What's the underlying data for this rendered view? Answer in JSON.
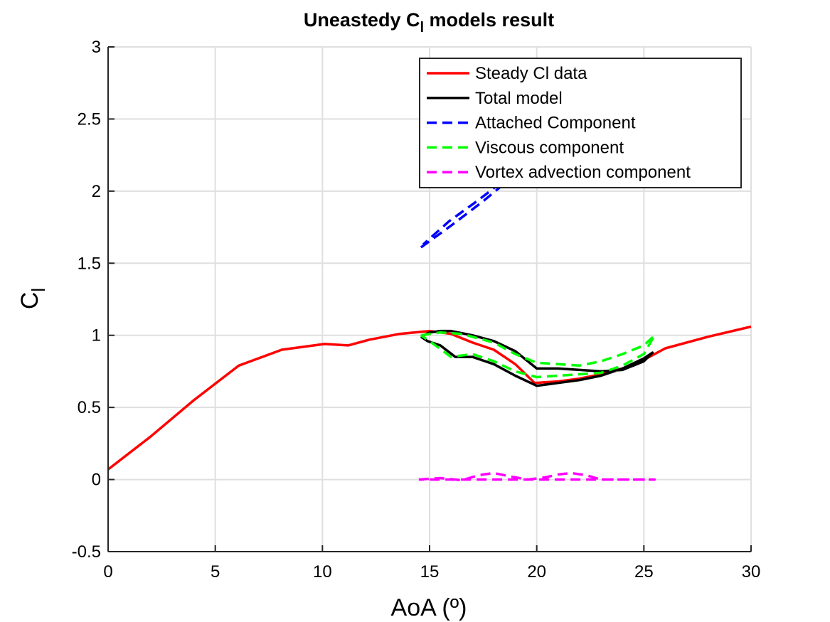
{
  "chart_data": {
    "type": "line",
    "title": "Uneastedy C",
    "title_subscript": "l",
    "title_suffix": " models result",
    "xlabel": "AoA (º)",
    "ylabel": "C",
    "ylabel_subscript": "l",
    "xlim": [
      0,
      30
    ],
    "ylim": [
      -0.5,
      3
    ],
    "xticks": [
      0,
      5,
      10,
      15,
      20,
      25,
      30
    ],
    "yticks": [
      -0.5,
      0,
      0.5,
      1,
      1.5,
      2,
      2.5,
      3
    ],
    "xtick_labels": [
      "0",
      "5",
      "10",
      "15",
      "20",
      "25",
      "30"
    ],
    "ytick_labels": [
      "-0.5",
      "0",
      "0.5",
      "1",
      "1.5",
      "2",
      "2.5",
      "3"
    ],
    "grid": true,
    "legend_position": "top-right",
    "colors": {
      "steady": "#ff0000",
      "total": "#000000",
      "attached": "#0000ff",
      "viscous": "#00ff00",
      "vortex": "#ff00ff"
    },
    "series": [
      {
        "name": "Steady Cl data",
        "style": "solid",
        "color": "#ff0000",
        "x": [
          0,
          2,
          4,
          6.1,
          8.1,
          10.1,
          11.2,
          12.2,
          13.6,
          15.0,
          16.0,
          17.0,
          18.0,
          19.0,
          19.9,
          21.0,
          22.0,
          23.0,
          24.0,
          25.0,
          26.0,
          28.0,
          30.0
        ],
        "y": [
          0.07,
          0.3,
          0.55,
          0.79,
          0.9,
          0.94,
          0.93,
          0.97,
          1.01,
          1.03,
          1.01,
          0.95,
          0.9,
          0.8,
          0.67,
          0.68,
          0.7,
          0.73,
          0.77,
          0.83,
          0.91,
          0.99,
          1.06
        ]
      },
      {
        "name": "Total model",
        "style": "solid",
        "color": "#000000",
        "x": [
          14.6,
          15.0,
          15.5,
          16.0,
          17.0,
          18.0,
          19.0,
          20.0,
          21.0,
          22.0,
          23.0,
          24.0,
          25.0,
          25.4,
          25.0,
          24.0,
          23.0,
          22.0,
          21.0,
          20.0,
          19.0,
          18.0,
          17.0,
          16.2,
          15.5,
          14.9,
          14.6
        ],
        "y": [
          0.99,
          1.02,
          1.03,
          1.03,
          1.0,
          0.96,
          0.89,
          0.77,
          0.77,
          0.76,
          0.75,
          0.76,
          0.82,
          0.88,
          0.84,
          0.77,
          0.72,
          0.69,
          0.67,
          0.65,
          0.72,
          0.8,
          0.85,
          0.85,
          0.93,
          0.96,
          0.99
        ]
      },
      {
        "name": "Attached Component",
        "style": "dashed",
        "color": "#0000ff",
        "x": [
          14.6,
          16.0,
          17.5,
          18.8,
          18.6,
          17.3,
          15.9,
          14.7
        ],
        "y": [
          1.61,
          1.76,
          1.93,
          2.09,
          2.09,
          1.94,
          1.79,
          1.63
        ]
      },
      {
        "name": "Viscous component",
        "style": "dashed",
        "color": "#00ff00",
        "x": [
          14.6,
          15.5,
          16.5,
          18.0,
          19.0,
          20.0,
          21.0,
          22.0,
          23.0,
          24.0,
          25.0,
          25.5,
          25.0,
          24.0,
          23.0,
          22.0,
          21.0,
          20.0,
          19.0,
          18.0,
          17.0,
          16.0,
          15.0,
          14.6
        ],
        "y": [
          1.0,
          1.02,
          1.01,
          0.95,
          0.87,
          0.81,
          0.8,
          0.79,
          0.82,
          0.87,
          0.93,
          1.0,
          0.87,
          0.79,
          0.74,
          0.73,
          0.72,
          0.71,
          0.75,
          0.82,
          0.87,
          0.85,
          0.96,
          1.0
        ]
      },
      {
        "name": "Vortex advection component",
        "style": "dashed",
        "color": "#ff00ff",
        "x": [
          14.5,
          15.5,
          16.5,
          17.3,
          18.0,
          18.8,
          19.6,
          20.4,
          21.0,
          21.6,
          22.3,
          23.0,
          24.0,
          25.0,
          25.5,
          24.0,
          22.0,
          20.0,
          18.0,
          16.0,
          14.5
        ],
        "y": [
          0.0,
          0.01,
          -0.005,
          0.03,
          0.045,
          0.02,
          0.0,
          0.015,
          0.035,
          0.045,
          0.03,
          0.0,
          0.0,
          0.0,
          0.0,
          0.0,
          0.0,
          0.0,
          0.0,
          0.0,
          0.0
        ]
      }
    ]
  }
}
